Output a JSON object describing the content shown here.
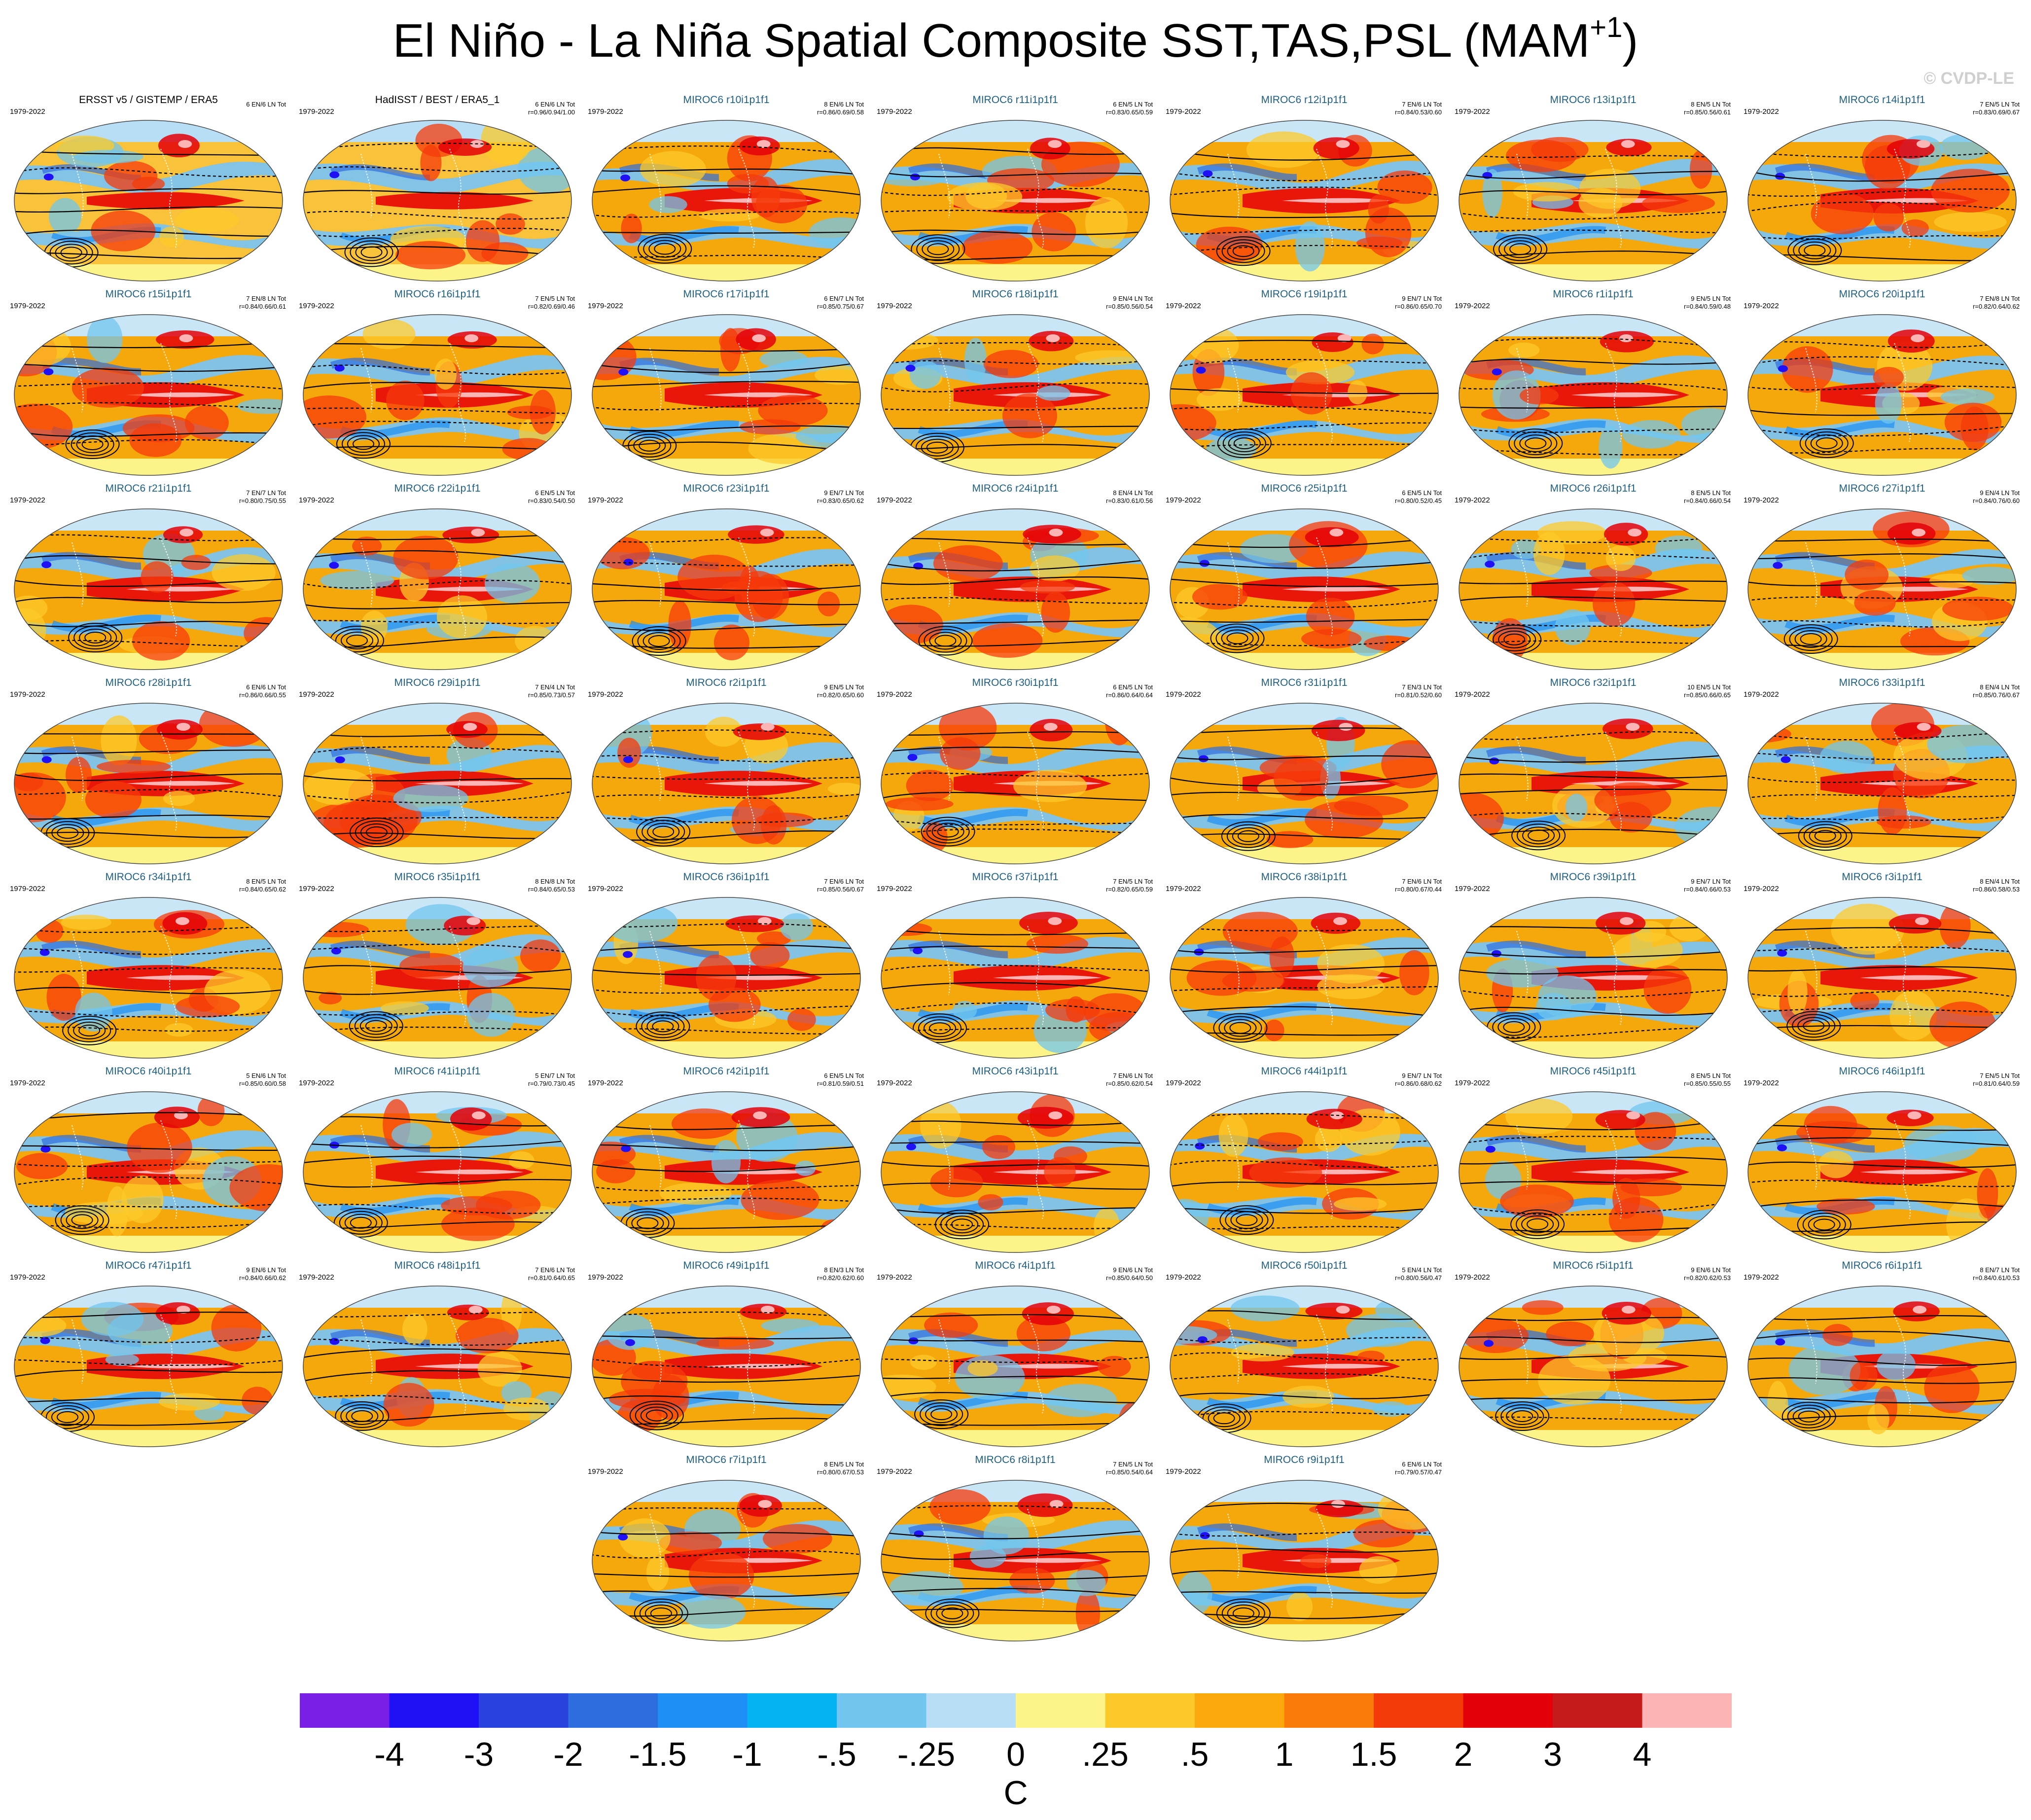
{
  "title": {
    "main": "El Niño - La Niña Spatial Composite SST,TAS,PSL (MAM",
    "superscript": "+1",
    "tail": ")"
  },
  "copyright": "© CVDP-LE",
  "colors": {
    "ocean_warm": "#f5a80c",
    "ocean_cool": "#7cc3ee",
    "tropical": "#e8170a",
    "land_mix": "#ffd52a"
  },
  "chart_data": {
    "type": "heatmap",
    "projection": "Robinson",
    "colorbar": {
      "units": "C",
      "labels": [
        "-4",
        "-3",
        "-2",
        "-1.5",
        "-1",
        "-.5",
        "-.25",
        "0",
        ".25",
        ".5",
        "1",
        "1.5",
        "2",
        "3",
        "4"
      ],
      "colors": [
        "#7a1fe6",
        "#1f10f5",
        "#2a42dd",
        "#2e6ddf",
        "#1e8ff4",
        "#06b3f2",
        "#72c5ee",
        "#b7def5",
        "#fcf489",
        "#fcc92a",
        "#fba80d",
        "#fa7b09",
        "#f53a0a",
        "#e40008",
        "#c71a1a",
        "#fdb4b4"
      ]
    },
    "panels": [
      {
        "title": "ERSST v5 / GISTEMP / ERA5",
        "period": "1979-2022",
        "counts": "6 EN/6 LN Tot",
        "corr": "",
        "obs": true
      },
      {
        "title": "HadISST / BEST / ERA5_1",
        "period": "1979-2022",
        "counts": "6 EN/6 LN Tot",
        "corr": "r=0.96/0.94/1.00",
        "obs": true
      },
      {
        "title": "MIROC6 r10i1p1f1",
        "period": "1979-2022",
        "counts": "8 EN/6 LN Tot",
        "corr": "r=0.86/0.69/0.58"
      },
      {
        "title": "MIROC6 r11i1p1f1",
        "period": "1979-2022",
        "counts": "6 EN/5 LN Tot",
        "corr": "r=0.83/0.65/0.59"
      },
      {
        "title": "MIROC6 r12i1p1f1",
        "period": "1979-2022",
        "counts": "7 EN/6 LN Tot",
        "corr": "r=0.84/0.53/0.60"
      },
      {
        "title": "MIROC6 r13i1p1f1",
        "period": "1979-2022",
        "counts": "8 EN/5 LN Tot",
        "corr": "r=0.85/0.56/0.61"
      },
      {
        "title": "MIROC6 r14i1p1f1",
        "period": "1979-2022",
        "counts": "7 EN/5 LN Tot",
        "corr": "r=0.83/0.69/0.67"
      },
      {
        "title": "MIROC6 r15i1p1f1",
        "period": "1979-2022",
        "counts": "7 EN/8 LN Tot",
        "corr": "r=0.84/0.66/0.61"
      },
      {
        "title": "MIROC6 r16i1p1f1",
        "period": "1979-2022",
        "counts": "7 EN/5 LN Tot",
        "corr": "r=0.82/0.69/0.46"
      },
      {
        "title": "MIROC6 r17i1p1f1",
        "period": "1979-2022",
        "counts": "6 EN/7 LN Tot",
        "corr": "r=0.85/0.75/0.67"
      },
      {
        "title": "MIROC6 r18i1p1f1",
        "period": "1979-2022",
        "counts": "9 EN/4 LN Tot",
        "corr": "r=0.85/0.56/0.54"
      },
      {
        "title": "MIROC6 r19i1p1f1",
        "period": "1979-2022",
        "counts": "9 EN/7 LN Tot",
        "corr": "r=0.86/0.65/0.70"
      },
      {
        "title": "MIROC6 r1i1p1f1",
        "period": "1979-2022",
        "counts": "9 EN/5 LN Tot",
        "corr": "r=0.84/0.59/0.48"
      },
      {
        "title": "MIROC6 r20i1p1f1",
        "period": "1979-2022",
        "counts": "7 EN/8 LN Tot",
        "corr": "r=0.82/0.64/0.62"
      },
      {
        "title": "MIROC6 r21i1p1f1",
        "period": "1979-2022",
        "counts": "7 EN/7 LN Tot",
        "corr": "r=0.80/0.75/0.55"
      },
      {
        "title": "MIROC6 r22i1p1f1",
        "period": "1979-2022",
        "counts": "6 EN/5 LN Tot",
        "corr": "r=0.83/0.54/0.50"
      },
      {
        "title": "MIROC6 r23i1p1f1",
        "period": "1979-2022",
        "counts": "9 EN/7 LN Tot",
        "corr": "r=0.83/0.65/0.62"
      },
      {
        "title": "MIROC6 r24i1p1f1",
        "period": "1979-2022",
        "counts": "8 EN/4 LN Tot",
        "corr": "r=0.83/0.61/0.56"
      },
      {
        "title": "MIROC6 r25i1p1f1",
        "period": "1979-2022",
        "counts": "6 EN/5 LN Tot",
        "corr": "r=0.80/0.52/0.45"
      },
      {
        "title": "MIROC6 r26i1p1f1",
        "period": "1979-2022",
        "counts": "8 EN/5 LN Tot",
        "corr": "r=0.84/0.66/0.54"
      },
      {
        "title": "MIROC6 r27i1p1f1",
        "period": "1979-2022",
        "counts": "9 EN/4 LN Tot",
        "corr": "r=0.84/0.76/0.60"
      },
      {
        "title": "MIROC6 r28i1p1f1",
        "period": "1979-2022",
        "counts": "6 EN/6 LN Tot",
        "corr": "r=0.86/0.66/0.55"
      },
      {
        "title": "MIROC6 r29i1p1f1",
        "period": "1979-2022",
        "counts": "7 EN/4 LN Tot",
        "corr": "r=0.85/0.73/0.57"
      },
      {
        "title": "MIROC6 r2i1p1f1",
        "period": "1979-2022",
        "counts": "9 EN/5 LN Tot",
        "corr": "r=0.82/0.65/0.60"
      },
      {
        "title": "MIROC6 r30i1p1f1",
        "period": "1979-2022",
        "counts": "6 EN/5 LN Tot",
        "corr": "r=0.86/0.64/0.64"
      },
      {
        "title": "MIROC6 r31i1p1f1",
        "period": "1979-2022",
        "counts": "7 EN/3 LN Tot",
        "corr": "r=0.81/0.52/0.60"
      },
      {
        "title": "MIROC6 r32i1p1f1",
        "period": "1979-2022",
        "counts": "10 EN/5 LN Tot",
        "corr": "r=0.85/0.66/0.65"
      },
      {
        "title": "MIROC6 r33i1p1f1",
        "period": "1979-2022",
        "counts": "8 EN/4 LN Tot",
        "corr": "r=0.85/0.76/0.67"
      },
      {
        "title": "MIROC6 r34i1p1f1",
        "period": "1979-2022",
        "counts": "8 EN/5 LN Tot",
        "corr": "r=0.84/0.65/0.62"
      },
      {
        "title": "MIROC6 r35i1p1f1",
        "period": "1979-2022",
        "counts": "8 EN/8 LN Tot",
        "corr": "r=0.84/0.65/0.53"
      },
      {
        "title": "MIROC6 r36i1p1f1",
        "period": "1979-2022",
        "counts": "7 EN/6 LN Tot",
        "corr": "r=0.85/0.56/0.67"
      },
      {
        "title": "MIROC6 r37i1p1f1",
        "period": "1979-2022",
        "counts": "7 EN/5 LN Tot",
        "corr": "r=0.82/0.65/0.59"
      },
      {
        "title": "MIROC6 r38i1p1f1",
        "period": "1979-2022",
        "counts": "7 EN/6 LN Tot",
        "corr": "r=0.80/0.67/0.44"
      },
      {
        "title": "MIROC6 r39i1p1f1",
        "period": "1979-2022",
        "counts": "9 EN/7 LN Tot",
        "corr": "r=0.84/0.66/0.53"
      },
      {
        "title": "MIROC6 r3i1p1f1",
        "period": "1979-2022",
        "counts": "8 EN/4 LN Tot",
        "corr": "r=0.86/0.58/0.53"
      },
      {
        "title": "MIROC6 r40i1p1f1",
        "period": "1979-2022",
        "counts": "5 EN/6 LN Tot",
        "corr": "r=0.85/0.60/0.58"
      },
      {
        "title": "MIROC6 r41i1p1f1",
        "period": "1979-2022",
        "counts": "5 EN/7 LN Tot",
        "corr": "r=0.79/0.73/0.45"
      },
      {
        "title": "MIROC6 r42i1p1f1",
        "period": "1979-2022",
        "counts": "6 EN/5 LN Tot",
        "corr": "r=0.81/0.59/0.51"
      },
      {
        "title": "MIROC6 r43i1p1f1",
        "period": "1979-2022",
        "counts": "7 EN/6 LN Tot",
        "corr": "r=0.85/0.62/0.54"
      },
      {
        "title": "MIROC6 r44i1p1f1",
        "period": "1979-2022",
        "counts": "9 EN/7 LN Tot",
        "corr": "r=0.86/0.68/0.62"
      },
      {
        "title": "MIROC6 r45i1p1f1",
        "period": "1979-2022",
        "counts": "8 EN/5 LN Tot",
        "corr": "r=0.85/0.55/0.55"
      },
      {
        "title": "MIROC6 r46i1p1f1",
        "period": "1979-2022",
        "counts": "7 EN/5 LN Tot",
        "corr": "r=0.81/0.64/0.59"
      },
      {
        "title": "MIROC6 r47i1p1f1",
        "period": "1979-2022",
        "counts": "9 EN/6 LN Tot",
        "corr": "r=0.84/0.66/0.62"
      },
      {
        "title": "MIROC6 r48i1p1f1",
        "period": "1979-2022",
        "counts": "7 EN/6 LN Tot",
        "corr": "r=0.81/0.64/0.65"
      },
      {
        "title": "MIROC6 r49i1p1f1",
        "period": "1979-2022",
        "counts": "8 EN/3 LN Tot",
        "corr": "r=0.82/0.62/0.60"
      },
      {
        "title": "MIROC6 r4i1p1f1",
        "period": "1979-2022",
        "counts": "9 EN/6 LN Tot",
        "corr": "r=0.85/0.64/0.50"
      },
      {
        "title": "MIROC6 r50i1p1f1",
        "period": "1979-2022",
        "counts": "5 EN/4 LN Tot",
        "corr": "r=0.80/0.56/0.47"
      },
      {
        "title": "MIROC6 r5i1p1f1",
        "period": "1979-2022",
        "counts": "9 EN/6 LN Tot",
        "corr": "r=0.82/0.62/0.53"
      },
      {
        "title": "MIROC6 r6i1p1f1",
        "period": "1979-2022",
        "counts": "8 EN/7 LN Tot",
        "corr": "r=0.84/0.61/0.53"
      },
      {
        "title": "MIROC6 r7i1p1f1",
        "period": "1979-2022",
        "counts": "8 EN/5 LN Tot",
        "corr": "r=0.80/0.67/0.53"
      },
      {
        "title": "MIROC6 r8i1p1f1",
        "period": "1979-2022",
        "counts": "7 EN/5 LN Tot",
        "corr": "r=0.85/0.54/0.64"
      },
      {
        "title": "MIROC6 r9i1p1f1",
        "period": "1979-2022",
        "counts": "6 EN/6 LN Tot",
        "corr": "r=0.79/0.57/0.47"
      }
    ]
  }
}
